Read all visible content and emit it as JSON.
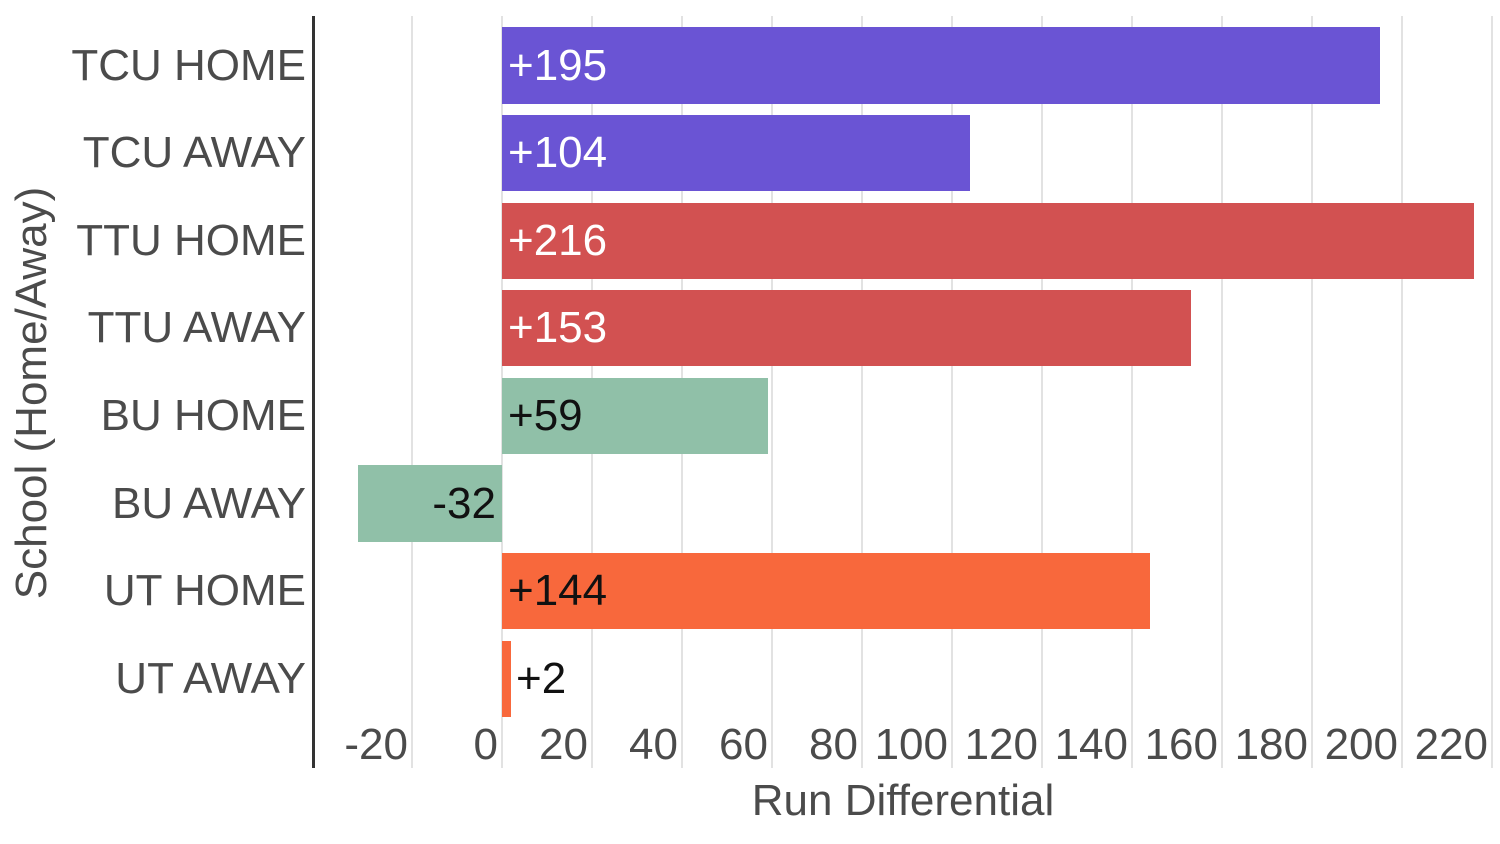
{
  "chart_data": {
    "type": "bar",
    "orientation": "horizontal",
    "title": "",
    "xlabel": "Run Differential",
    "ylabel": "School (Home/Away)",
    "categories": [
      "TCU HOME",
      "TCU AWAY",
      "TTU HOME",
      "TTU AWAY",
      "BU HOME",
      "BU AWAY",
      "UT HOME",
      "UT AWAY"
    ],
    "values": [
      195,
      104,
      216,
      153,
      59,
      -32,
      144,
      2
    ],
    "bar_labels": [
      "+195",
      "+104",
      "+216",
      "+153",
      "+59",
      "-32",
      "+144",
      "+2"
    ],
    "bar_colors": [
      "#6a54d4",
      "#6a54d4",
      "#d25151",
      "#d25151",
      "#90c0a8",
      "#90c0a8",
      "#f8683c",
      "#f8683c"
    ],
    "bar_label_colors": [
      "#ffffff",
      "#ffffff",
      "#ffffff",
      "#ffffff",
      "#111111",
      "#111111",
      "#111111",
      "#111111"
    ],
    "x_ticks": [
      -20,
      0,
      20,
      40,
      60,
      80,
      100,
      120,
      140,
      160,
      180,
      200,
      220
    ],
    "xlim": [
      -42,
      222
    ],
    "grid": "vertical-only",
    "legend": "none",
    "colors_meaning": {
      "TCU": "#6a54d4",
      "TTU": "#d25151",
      "BU": "#90c0a8",
      "UT": "#f8683c"
    },
    "text_color": "#4b4b4b",
    "gridline_color": "#e2e2e2",
    "axis_line_color": "#333333"
  }
}
